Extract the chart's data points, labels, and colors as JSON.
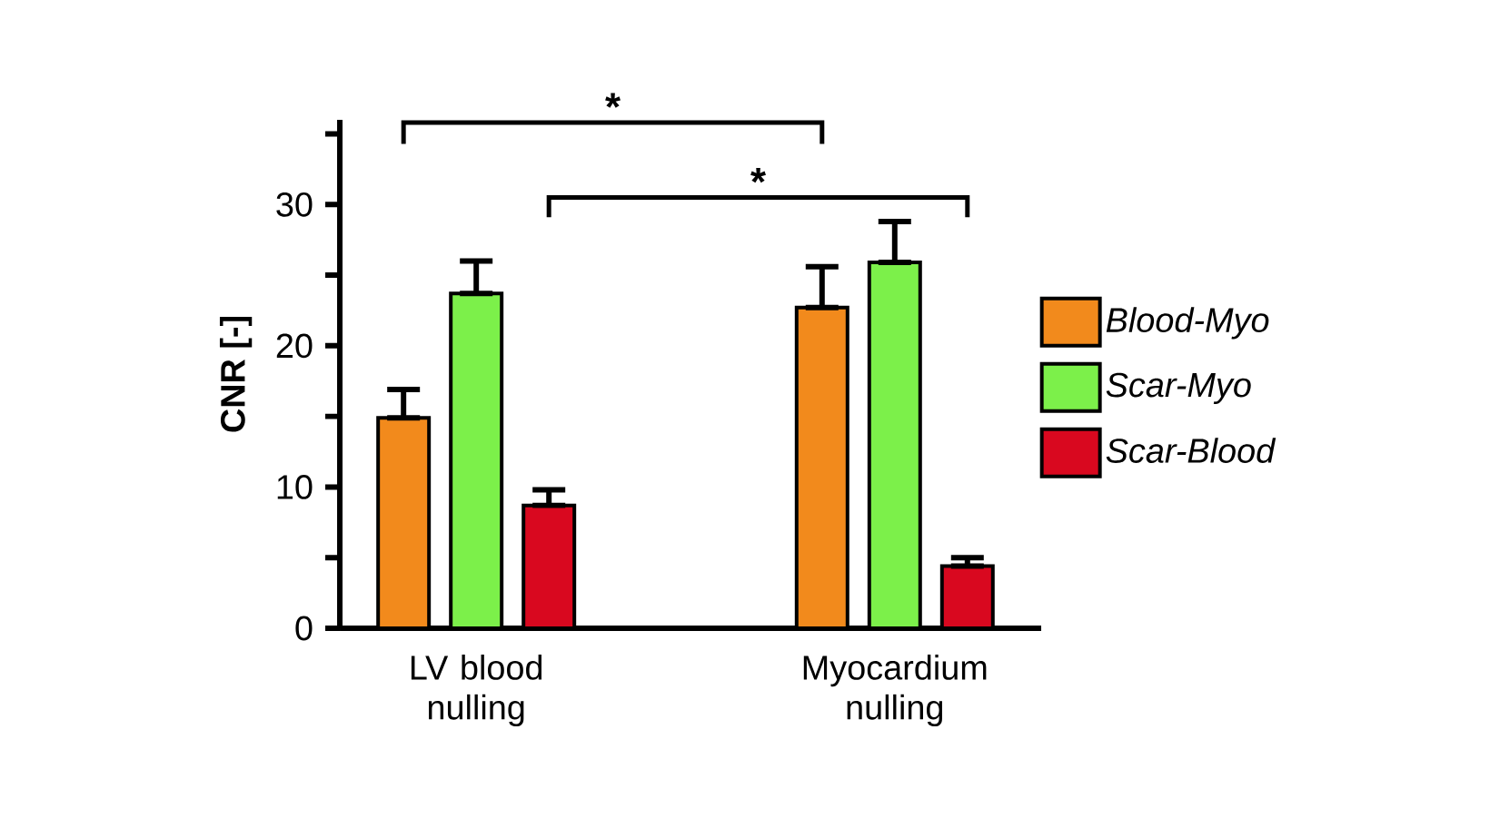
{
  "chart_data": {
    "type": "bar",
    "ylabel": "CNR  [-]",
    "categories": [
      "LV blood nulling",
      "Myocardium nulling"
    ],
    "series": [
      {
        "name": "Blood-Myo",
        "color": "#f28a1c",
        "values": [
          14.9,
          22.7
        ],
        "errors": [
          [
            14.9,
            16.9
          ],
          [
            22.7,
            25.6
          ]
        ]
      },
      {
        "name": "Scar-Myo",
        "color": "#7cf04a",
        "values": [
          23.7,
          25.9
        ],
        "errors": [
          [
            23.7,
            26.0
          ],
          [
            25.9,
            28.8
          ]
        ]
      },
      {
        "name": "Scar-Blood",
        "color": "#d9081f",
        "values": [
          8.7,
          4.4
        ],
        "errors": [
          [
            8.7,
            9.8
          ],
          [
            4.4,
            5.0
          ]
        ]
      }
    ],
    "ylim": [
      0,
      36
    ],
    "yticks": [
      0,
      {
        "value": 5,
        "label": null
      },
      10,
      {
        "value": 15,
        "label": null
      },
      20,
      {
        "value": 25,
        "label": null
      },
      30,
      {
        "value": 35,
        "label": null
      }
    ],
    "annotations": [
      "*",
      "*"
    ],
    "legend": "right",
    "grid": false
  }
}
